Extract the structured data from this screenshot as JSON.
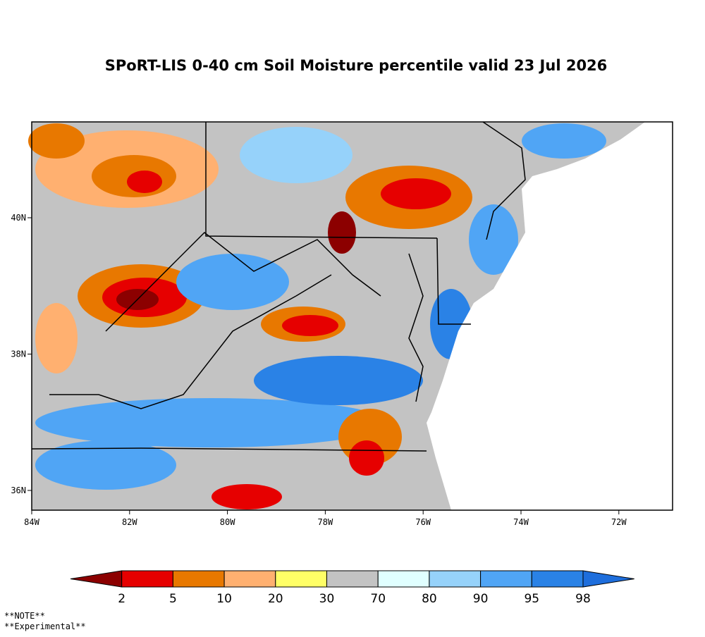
{
  "title": "SPoRT-LIS 0-40 cm Soil Moisture percentile valid 23 Jul 2026",
  "map": {
    "x_labels": [
      "84W",
      "82W",
      "80W",
      "78W",
      "76W",
      "74W",
      "72W"
    ],
    "y_labels": [
      "40N",
      "38N",
      "36N"
    ]
  },
  "colorbar": {
    "colors": [
      "#8c0000",
      "#e60000",
      "#e87800",
      "#ffb070",
      "#ffff66",
      "#c3c3c3",
      "#e0ffff",
      "#96d2fa",
      "#50a5f5",
      "#2a82e6",
      "#1e6edc"
    ],
    "ticks": [
      2,
      5,
      10,
      20,
      30,
      70,
      80,
      90,
      95,
      98
    ]
  },
  "notes": [
    "**NOTE**",
    "**Experimental**"
  ]
}
